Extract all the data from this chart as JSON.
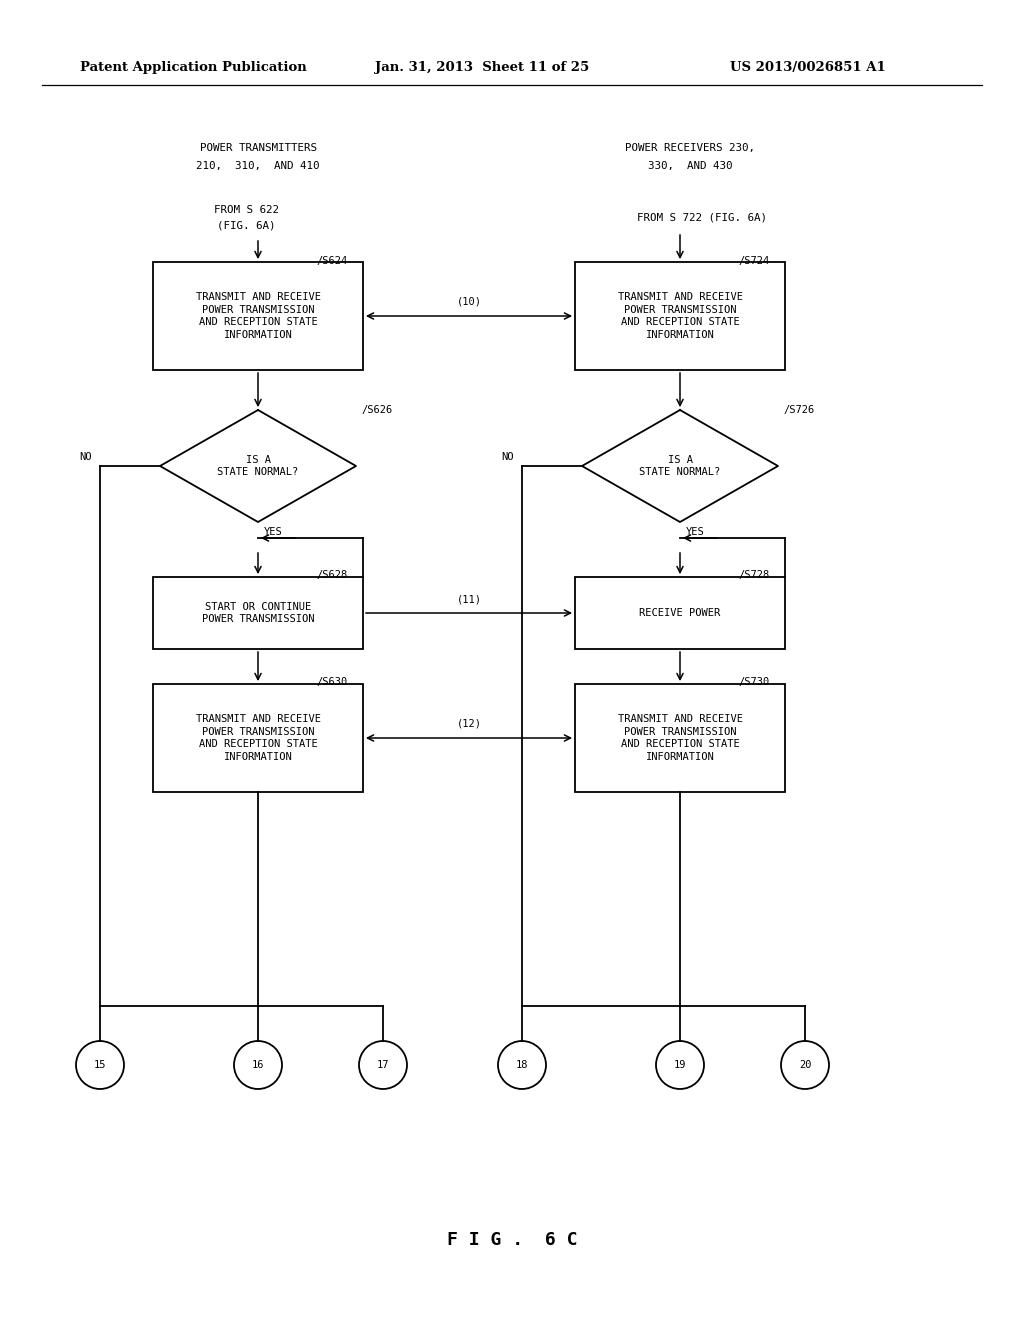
{
  "bg_color": "#ffffff",
  "header_pub": "Patent Application Publication",
  "header_date": "Jan. 31, 2013  Sheet 11 of 25",
  "header_pat": "US 2013/0026851 A1",
  "title_left_1": "POWER TRANSMITTERS",
  "title_left_2": "210,  310,  AND 410",
  "title_right_1": "POWER RECEIVERS 230,",
  "title_right_2": "330,  AND 430",
  "from_left_1": "FROM S 622",
  "from_left_2": "(FIG. 6A)",
  "from_right": "FROM S 722 (FIG. 6A)",
  "box1_text": "TRANSMIT AND RECEIVE\nPOWER TRANSMISSION\nAND RECEPTION STATE\nINFORMATION",
  "diamond_text": "IS A\nSTATE NORMAL?",
  "box2_left": "START OR CONTINUE\nPOWER TRANSMISSION",
  "box2_right": "RECEIVE POWER",
  "box3_text": "TRANSMIT AND RECEIVE\nPOWER TRANSMISSION\nAND RECEPTION STATE\nINFORMATION",
  "fig_label": "F I G .  6 C",
  "circles": [
    "15",
    "16",
    "17",
    "18",
    "19",
    "20"
  ]
}
